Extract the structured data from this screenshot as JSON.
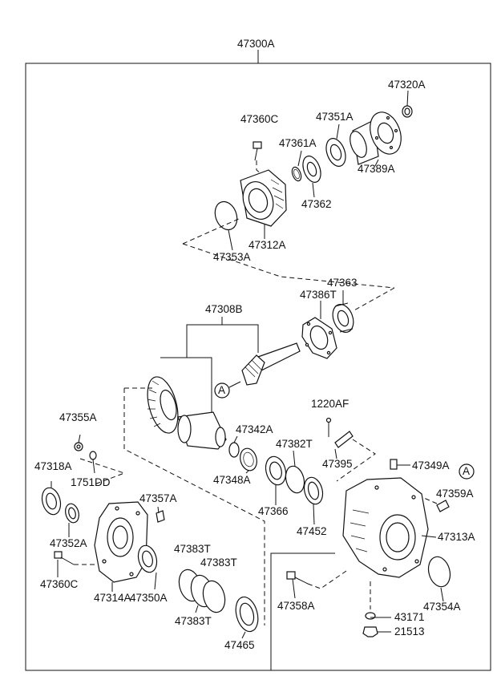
{
  "diagram": {
    "assembly_number": "47300A",
    "callout_letter": "A",
    "parts": {
      "p47320A": "47320A",
      "p47360C_top": "47360C",
      "p47351A": "47351A",
      "p47361A": "47361A",
      "p47389A": "47389A",
      "p47362": "47362",
      "p47312A": "47312A",
      "p47353A": "47353A",
      "p47363": "47363",
      "p47386T": "47386T",
      "p47308B": "47308B",
      "p1220AF": "1220AF",
      "p47355A": "47355A",
      "p47342A": "47342A",
      "p47382T": "47382T",
      "p47395": "47395",
      "p47349A": "47349A",
      "p47318A": "47318A",
      "p1751DD": "1751DD",
      "p47348A": "47348A",
      "p47359A": "47359A",
      "p47357A": "47357A",
      "p47366": "47366",
      "p47452": "47452",
      "p47313A": "47313A",
      "p47352A": "47352A",
      "p47383T_a": "47383T",
      "p47383T_b": "47383T",
      "p47383T_c": "47383T",
      "p47360C_bottom": "47360C",
      "p47314A": "47314A",
      "p47350A": "47350A",
      "p47354A": "47354A",
      "p47358A": "47358A",
      "p43171": "43171",
      "p21513": "21513",
      "p47465": "47465"
    }
  }
}
